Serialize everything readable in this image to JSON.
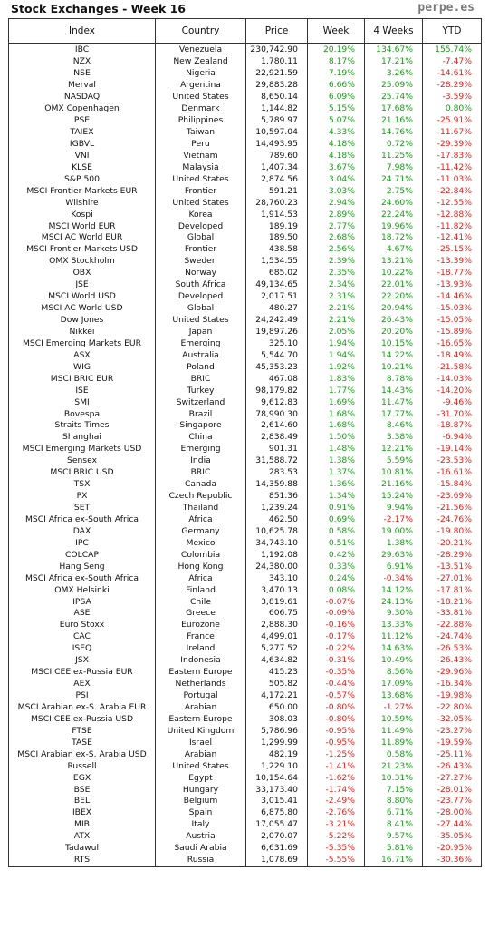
{
  "title": "Stock Exchanges - Week 16",
  "brand": "perpe.es",
  "colors": {
    "positive": "#1a9a1a",
    "negative": "#e0201b"
  },
  "columns": [
    "Index",
    "Country",
    "Price",
    "Week",
    "4 Weeks",
    "YTD"
  ],
  "rows": [
    [
      "IBC",
      "Venezuela",
      "230,742.90",
      "20.19%",
      "134.67%",
      "155.74%"
    ],
    [
      "NZX",
      "New Zealand",
      "1,780.11",
      "8.17%",
      "17.21%",
      "-7.47%"
    ],
    [
      "NSE",
      "Nigeria",
      "22,921.59",
      "7.19%",
      "3.26%",
      "-14.61%"
    ],
    [
      "Merval",
      "Argentina",
      "29,883.28",
      "6.66%",
      "25.09%",
      "-28.29%"
    ],
    [
      "NASDAQ",
      "United States",
      "8,650.14",
      "6.09%",
      "25.74%",
      "-3.59%"
    ],
    [
      "OMX Copenhagen",
      "Denmark",
      "1,144.82",
      "5.15%",
      "17.68%",
      "0.80%"
    ],
    [
      "PSE",
      "Philippines",
      "5,789.97",
      "5.07%",
      "21.16%",
      "-25.91%"
    ],
    [
      "TAIEX",
      "Taiwan",
      "10,597.04",
      "4.33%",
      "14.76%",
      "-11.67%"
    ],
    [
      "IGBVL",
      "Peru",
      "14,493.95",
      "4.18%",
      "0.72%",
      "-29.39%"
    ],
    [
      "VNI",
      "Vietnam",
      "789.60",
      "4.18%",
      "11.25%",
      "-17.83%"
    ],
    [
      "KLSE",
      "Malaysia",
      "1,407.34",
      "3.67%",
      "7.98%",
      "-11.42%"
    ],
    [
      "S&P 500",
      "United States",
      "2,874.56",
      "3.04%",
      "24.71%",
      "-11.03%"
    ],
    [
      "MSCI Frontier Markets EUR",
      "Frontier",
      "591.21",
      "3.03%",
      "2.75%",
      "-22.84%"
    ],
    [
      "Wilshire",
      "United States",
      "28,760.23",
      "2.94%",
      "24.60%",
      "-12.55%"
    ],
    [
      "Kospi",
      "Korea",
      "1,914.53",
      "2.89%",
      "22.24%",
      "-12.88%"
    ],
    [
      "MSCI World EUR",
      "Developed",
      "189.19",
      "2.77%",
      "19.96%",
      "-11.82%"
    ],
    [
      "MSCI AC World EUR",
      "Global",
      "189.50",
      "2.68%",
      "18.72%",
      "-12.41%"
    ],
    [
      "MSCI Frontier Markets USD",
      "Frontier",
      "438.58",
      "2.56%",
      "4.67%",
      "-25.15%"
    ],
    [
      "OMX Stockholm",
      "Sweden",
      "1,534.55",
      "2.39%",
      "13.21%",
      "-13.39%"
    ],
    [
      "OBX",
      "Norway",
      "685.02",
      "2.35%",
      "10.22%",
      "-18.77%"
    ],
    [
      "JSE",
      "South Africa",
      "49,134.65",
      "2.34%",
      "22.01%",
      "-13.93%"
    ],
    [
      "MSCI World USD",
      "Developed",
      "2,017.51",
      "2.31%",
      "22.20%",
      "-14.46%"
    ],
    [
      "MSCI AC World USD",
      "Global",
      "480.27",
      "2.21%",
      "20.94%",
      "-15.03%"
    ],
    [
      "Dow Jones",
      "United States",
      "24,242.49",
      "2.21%",
      "26.43%",
      "-15.05%"
    ],
    [
      "Nikkei",
      "Japan",
      "19,897.26",
      "2.05%",
      "20.20%",
      "-15.89%"
    ],
    [
      "MSCI Emerging Markets EUR",
      "Emerging",
      "325.10",
      "1.94%",
      "10.15%",
      "-16.65%"
    ],
    [
      "ASX",
      "Australia",
      "5,544.70",
      "1.94%",
      "14.22%",
      "-18.49%"
    ],
    [
      "WIG",
      "Poland",
      "45,353.23",
      "1.92%",
      "10.21%",
      "-21.58%"
    ],
    [
      "MSCI BRIC EUR",
      "BRIC",
      "467.08",
      "1.83%",
      "8.78%",
      "-14.03%"
    ],
    [
      "ISE",
      "Turkey",
      "98,179.82",
      "1.77%",
      "14.43%",
      "-14.20%"
    ],
    [
      "SMI",
      "Switzerland",
      "9,612.83",
      "1.69%",
      "11.47%",
      "-9.46%"
    ],
    [
      "Bovespa",
      "Brazil",
      "78,990.30",
      "1.68%",
      "17.77%",
      "-31.70%"
    ],
    [
      "Straits Times",
      "Singapore",
      "2,614.60",
      "1.68%",
      "8.46%",
      "-18.87%"
    ],
    [
      "Shanghai",
      "China",
      "2,838.49",
      "1.50%",
      "3.38%",
      "-6.94%"
    ],
    [
      "MSCI Emerging Markets USD",
      "Emerging",
      "901.31",
      "1.48%",
      "12.21%",
      "-19.14%"
    ],
    [
      "Sensex",
      "India",
      "31,588.72",
      "1.38%",
      "5.59%",
      "-23.53%"
    ],
    [
      "MSCI BRIC USD",
      "BRIC",
      "283.53",
      "1.37%",
      "10.81%",
      "-16.61%"
    ],
    [
      "TSX",
      "Canada",
      "14,359.88",
      "1.36%",
      "21.16%",
      "-15.84%"
    ],
    [
      "PX",
      "Czech Republic",
      "851.36",
      "1.34%",
      "15.24%",
      "-23.69%"
    ],
    [
      "SET",
      "Thailand",
      "1,239.24",
      "0.91%",
      "9.94%",
      "-21.56%"
    ],
    [
      "MSCI Africa ex-South Africa",
      "Africa",
      "462.50",
      "0.69%",
      "-2.17%",
      "-24.76%"
    ],
    [
      "DAX",
      "Germany",
      "10,625.78",
      "0.58%",
      "19.00%",
      "-19.80%"
    ],
    [
      "IPC",
      "Mexico",
      "34,743.10",
      "0.51%",
      "1.38%",
      "-20.21%"
    ],
    [
      "COLCAP",
      "Colombia",
      "1,192.08",
      "0.42%",
      "29.63%",
      "-28.29%"
    ],
    [
      "Hang Seng",
      "Hong Kong",
      "24,380.00",
      "0.33%",
      "6.91%",
      "-13.51%"
    ],
    [
      "MSCI Africa ex-South Africa",
      "Africa",
      "343.10",
      "0.24%",
      "-0.34%",
      "-27.01%"
    ],
    [
      "OMX Helsinki",
      "Finland",
      "3,470.13",
      "0.08%",
      "14.12%",
      "-17.81%"
    ],
    [
      "IPSA",
      "Chile",
      "3,819.61",
      "-0.07%",
      "24.13%",
      "-18.21%"
    ],
    [
      "ASE",
      "Greece",
      "606.75",
      "-0.09%",
      "9.30%",
      "-33.81%"
    ],
    [
      "Euro Stoxx",
      "Eurozone",
      "2,888.30",
      "-0.16%",
      "13.33%",
      "-22.88%"
    ],
    [
      "CAC",
      "France",
      "4,499.01",
      "-0.17%",
      "11.12%",
      "-24.74%"
    ],
    [
      "ISEQ",
      "Ireland",
      "5,277.52",
      "-0.22%",
      "14.63%",
      "-26.53%"
    ],
    [
      "JSX",
      "Indonesia",
      "4,634.82",
      "-0.31%",
      "10.49%",
      "-26.43%"
    ],
    [
      "MSCI CEE ex-Russia EUR",
      "Eastern Europe",
      "415.23",
      "-0.35%",
      "8.56%",
      "-29.96%"
    ],
    [
      "AEX",
      "Netherlands",
      "505.82",
      "-0.44%",
      "17.09%",
      "-16.34%"
    ],
    [
      "PSI",
      "Portugal",
      "4,172.21",
      "-0.57%",
      "13.68%",
      "-19.98%"
    ],
    [
      "MSCI Arabian ex-S. Arabia EUR",
      "Arabian",
      "650.00",
      "-0.80%",
      "-1.27%",
      "-22.80%"
    ],
    [
      "MSCI CEE ex-Russia USD",
      "Eastern Europe",
      "308.03",
      "-0.80%",
      "10.59%",
      "-32.05%"
    ],
    [
      "FTSE",
      "United Kingdom",
      "5,786.96",
      "-0.95%",
      "11.49%",
      "-23.27%"
    ],
    [
      "TASE",
      "Israel",
      "1,299.99",
      "-0.95%",
      "11.89%",
      "-19.59%"
    ],
    [
      "MSCI Arabian ex-S. Arabia USD",
      "Arabian",
      "482.19",
      "-1.25%",
      "0.58%",
      "-25.11%"
    ],
    [
      "Russell",
      "United States",
      "1,229.10",
      "-1.41%",
      "21.23%",
      "-26.43%"
    ],
    [
      "EGX",
      "Egypt",
      "10,154.64",
      "-1.62%",
      "10.31%",
      "-27.27%"
    ],
    [
      "BSE",
      "Hungary",
      "33,173.40",
      "-1.74%",
      "7.15%",
      "-28.01%"
    ],
    [
      "BEL",
      "Belgium",
      "3,015.41",
      "-2.49%",
      "8.80%",
      "-23.77%"
    ],
    [
      "IBEX",
      "Spain",
      "6,875.80",
      "-2.76%",
      "6.71%",
      "-28.00%"
    ],
    [
      "MIB",
      "Italy",
      "17,055.47",
      "-3.21%",
      "8.41%",
      "-27.44%"
    ],
    [
      "ATX",
      "Austria",
      "2,070.07",
      "-5.22%",
      "9.57%",
      "-35.05%"
    ],
    [
      "Tadawul",
      "Saudi Arabia",
      "6,631.69",
      "-5.35%",
      "5.81%",
      "-20.95%"
    ],
    [
      "RTS",
      "Russia",
      "1,078.69",
      "-5.55%",
      "16.71%",
      "-30.36%"
    ]
  ]
}
